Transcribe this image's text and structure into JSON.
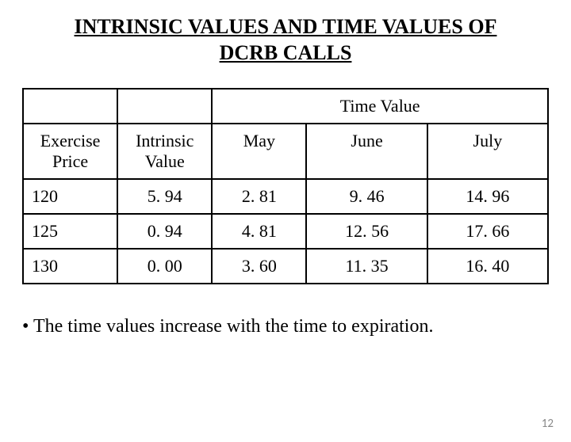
{
  "title_line1": "INTRINSIC VALUES AND TIME VALUES OF",
  "title_line2": "DCRB CALLS",
  "table": {
    "group_header": "Time Value",
    "col_headers": [
      "Exercise Price",
      "Intrinsic Value",
      "May",
      "June",
      "July"
    ],
    "rows": [
      [
        "120",
        "5. 94",
        "2. 81",
        "9. 46",
        "14. 96"
      ],
      [
        "125",
        "0. 94",
        "4. 81",
        "12. 56",
        "17. 66"
      ],
      [
        "130",
        "0. 00",
        "3. 60",
        "11. 35",
        "16. 40"
      ]
    ],
    "column_widths_pct": [
      18,
      18,
      18,
      23,
      23
    ]
  },
  "bullet_text": "The time values increase with the time to expiration.",
  "page_number": "12",
  "colors": {
    "background": "#ffffff",
    "text": "#000000",
    "page_num": "#888888"
  }
}
